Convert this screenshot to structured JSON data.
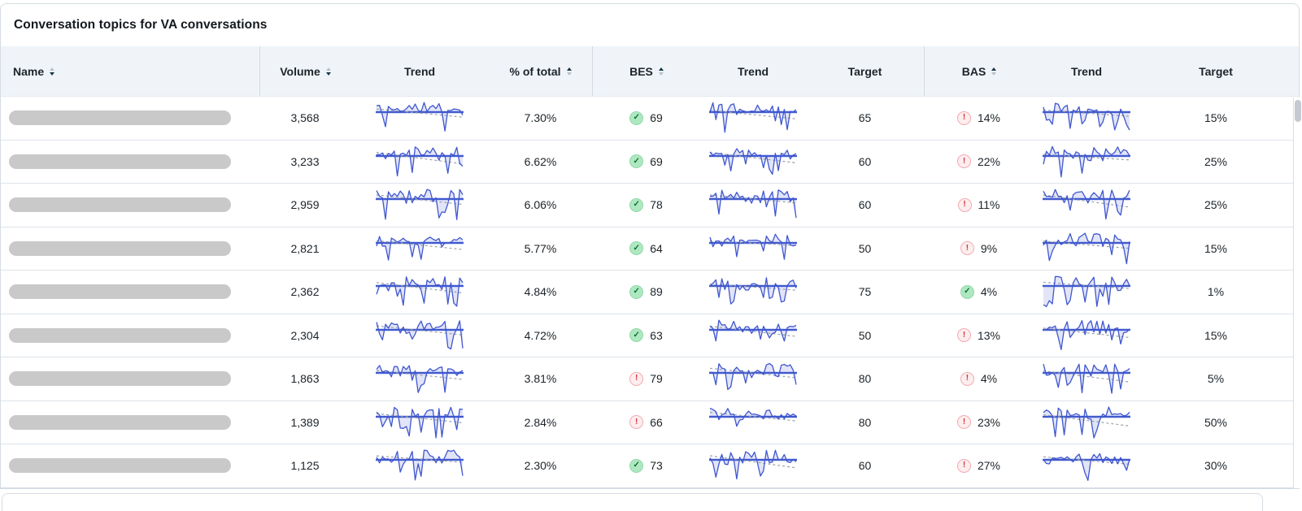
{
  "card": {
    "title": "Conversation topics for VA conversations"
  },
  "table": {
    "columns": [
      {
        "label": "Name",
        "sort": "desc"
      },
      {
        "label": "Volume",
        "sort": "desc"
      },
      {
        "label": "Trend",
        "sort": null
      },
      {
        "label": "% of total",
        "sort": "asc"
      },
      {
        "label": "BES",
        "sort": "asc"
      },
      {
        "label": "Trend",
        "sort": null
      },
      {
        "label": "Target",
        "sort": null
      },
      {
        "label": "BAS",
        "sort": "asc"
      },
      {
        "label": "Trend",
        "sort": null
      },
      {
        "label": "Target",
        "sort": null
      }
    ],
    "rows": [
      {
        "volume": "3,568",
        "pct": "7.30%",
        "bes": {
          "status": "pass",
          "value": "69"
        },
        "bes_target": "65",
        "bas": {
          "status": "fail",
          "value": "14%"
        },
        "bas_target": "15%",
        "sparks": [
          11,
          12,
          13
        ]
      },
      {
        "volume": "3,233",
        "pct": "6.62%",
        "bes": {
          "status": "pass",
          "value": "69"
        },
        "bes_target": "60",
        "bas": {
          "status": "fail",
          "value": "22%"
        },
        "bas_target": "25%",
        "sparks": [
          21,
          22,
          23
        ]
      },
      {
        "volume": "2,959",
        "pct": "6.06%",
        "bes": {
          "status": "pass",
          "value": "78"
        },
        "bes_target": "60",
        "bas": {
          "status": "fail",
          "value": "11%"
        },
        "bas_target": "25%",
        "sparks": [
          31,
          32,
          33
        ]
      },
      {
        "volume": "2,821",
        "pct": "5.77%",
        "bes": {
          "status": "pass",
          "value": "64"
        },
        "bes_target": "50",
        "bas": {
          "status": "fail",
          "value": "9%"
        },
        "bas_target": "15%",
        "sparks": [
          41,
          42,
          43
        ]
      },
      {
        "volume": "2,362",
        "pct": "4.84%",
        "bes": {
          "status": "pass",
          "value": "89"
        },
        "bes_target": "75",
        "bas": {
          "status": "pass",
          "value": "4%"
        },
        "bas_target": "1%",
        "sparks": [
          51,
          52,
          53
        ]
      },
      {
        "volume": "2,304",
        "pct": "4.72%",
        "bes": {
          "status": "pass",
          "value": "63"
        },
        "bes_target": "50",
        "bas": {
          "status": "fail",
          "value": "13%"
        },
        "bas_target": "15%",
        "sparks": [
          61,
          62,
          63
        ]
      },
      {
        "volume": "1,863",
        "pct": "3.81%",
        "bes": {
          "status": "fail",
          "value": "79"
        },
        "bes_target": "80",
        "bas": {
          "status": "fail",
          "value": "4%"
        },
        "bas_target": "5%",
        "sparks": [
          71,
          72,
          73
        ]
      },
      {
        "volume": "1,389",
        "pct": "2.84%",
        "bes": {
          "status": "fail",
          "value": "66"
        },
        "bes_target": "80",
        "bas": {
          "status": "fail",
          "value": "23%"
        },
        "bas_target": "50%",
        "sparks": [
          81,
          82,
          83
        ]
      },
      {
        "volume": "1,125",
        "pct": "2.30%",
        "bes": {
          "status": "pass",
          "value": "73"
        },
        "bes_target": "60",
        "bas": {
          "status": "fail",
          "value": "27%"
        },
        "bas_target": "30%",
        "sparks": [
          91,
          92,
          94
        ]
      }
    ]
  },
  "icons": {
    "pass": {
      "name": "checkmark-filled-icon",
      "glyph": "✓"
    },
    "fail": {
      "name": "warning-icon",
      "glyph": "!"
    }
  },
  "sparkline_style": {
    "series_color": "#3f57cf",
    "area_fill": "rgba(121,134,219,0.22)",
    "baseline_color": "#2d49c8",
    "baseline_band": "rgba(130,145,230,0.35)",
    "trendline_color": "#9aa0a6",
    "description": "jagged blue series with light fill, solid blue baseline, dashed gray declining trendline"
  },
  "colors": {
    "header_bg": "#f0f4f8",
    "divider": "#dde3e9",
    "name_placeholder": "#c9c9c9",
    "scrollbar_thumb": "#c3cad2"
  }
}
